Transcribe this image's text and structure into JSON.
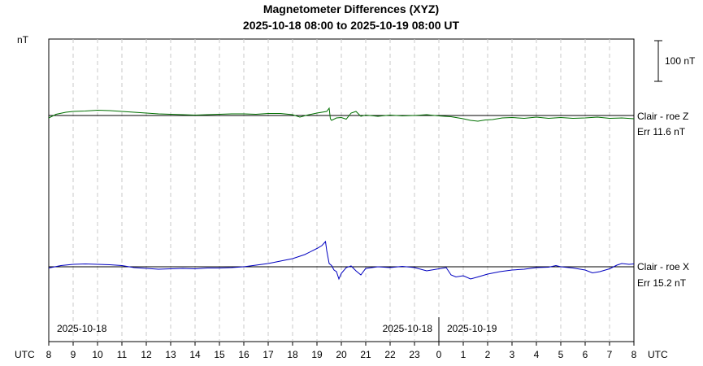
{
  "chart_data": {
    "type": "line",
    "title": "Magnetometer Differences (XYZ)",
    "subtitle": "2025-10-18 08:00 to 2025-10-19 08:00 UT",
    "y_unit_label": "nT",
    "scale_bar_label": "100 nT",
    "scale_bar_nT": 100,
    "x_axis_label_left": "UTC",
    "x_axis_label_right": "UTC",
    "x_ticks": [
      "8",
      "9",
      "10",
      "11",
      "12",
      "13",
      "14",
      "15",
      "16",
      "17",
      "18",
      "19",
      "20",
      "21",
      "22",
      "23",
      "0",
      "1",
      "2",
      "3",
      "4",
      "5",
      "6",
      "7",
      "8"
    ],
    "x_range_hours": [
      0,
      24
    ],
    "date_labels": [
      {
        "text": "2025-10-18",
        "hour": 0
      },
      {
        "text": "2025-10-18",
        "hour": 16
      },
      {
        "text": "2025-10-19",
        "hour": 16
      }
    ],
    "midnight_hour": 16,
    "grid": true,
    "series": [
      {
        "name": "Clair - roe Z",
        "error_label": "Err 11.6 nT",
        "color": "#007000",
        "points": [
          [
            0,
            -6
          ],
          [
            0.3,
            3
          ],
          [
            0.7,
            8
          ],
          [
            1.0,
            10
          ],
          [
            1.5,
            11
          ],
          [
            2.0,
            13
          ],
          [
            2.5,
            12
          ],
          [
            3.0,
            10
          ],
          [
            3.5,
            8
          ],
          [
            4.0,
            6
          ],
          [
            4.5,
            4
          ],
          [
            5.0,
            3
          ],
          [
            5.5,
            2
          ],
          [
            6.0,
            1
          ],
          [
            6.5,
            2
          ],
          [
            7.0,
            3
          ],
          [
            7.5,
            4
          ],
          [
            8.0,
            4
          ],
          [
            8.5,
            3
          ],
          [
            9.0,
            5
          ],
          [
            9.5,
            5
          ],
          [
            10.0,
            2
          ],
          [
            10.3,
            -4
          ],
          [
            10.6,
            1
          ],
          [
            11.0,
            6
          ],
          [
            11.4,
            10
          ],
          [
            11.5,
            18
          ],
          [
            11.55,
            -8
          ],
          [
            11.6,
            -12
          ],
          [
            11.8,
            -6
          ],
          [
            12.0,
            -5
          ],
          [
            12.2,
            -9
          ],
          [
            12.4,
            6
          ],
          [
            12.6,
            10
          ],
          [
            12.8,
            -2
          ],
          [
            13.0,
            1
          ],
          [
            13.5,
            -2
          ],
          [
            14.0,
            1
          ],
          [
            14.5,
            -1
          ],
          [
            15.0,
            0
          ],
          [
            15.5,
            2
          ],
          [
            16.0,
            -1
          ],
          [
            16.5,
            -3
          ],
          [
            17.0,
            -8
          ],
          [
            17.3,
            -12
          ],
          [
            17.6,
            -14
          ],
          [
            17.9,
            -11
          ],
          [
            18.2,
            -10
          ],
          [
            18.6,
            -6
          ],
          [
            19.0,
            -5
          ],
          [
            19.5,
            -7
          ],
          [
            20.0,
            -4
          ],
          [
            20.5,
            -7
          ],
          [
            21.0,
            -5
          ],
          [
            21.5,
            -7
          ],
          [
            22.0,
            -6
          ],
          [
            22.5,
            -4
          ],
          [
            23.0,
            -7
          ],
          [
            23.5,
            -6
          ],
          [
            24.0,
            -8
          ]
        ]
      },
      {
        "name": "Clair - roe X",
        "error_label": "Err 15.2 nT",
        "color": "#0000c0",
        "points": [
          [
            0,
            -3
          ],
          [
            0.5,
            3
          ],
          [
            1.0,
            6
          ],
          [
            1.5,
            7
          ],
          [
            2.0,
            6
          ],
          [
            2.5,
            5
          ],
          [
            3.0,
            3
          ],
          [
            3.5,
            -2
          ],
          [
            4.0,
            -4
          ],
          [
            4.5,
            -6
          ],
          [
            5.0,
            -5
          ],
          [
            5.5,
            -4
          ],
          [
            6.0,
            -5
          ],
          [
            6.5,
            -3
          ],
          [
            7.0,
            -3
          ],
          [
            7.5,
            -2
          ],
          [
            8.0,
            0
          ],
          [
            8.5,
            4
          ],
          [
            9.0,
            8
          ],
          [
            9.5,
            14
          ],
          [
            10.0,
            20
          ],
          [
            10.5,
            30
          ],
          [
            11.0,
            45
          ],
          [
            11.2,
            52
          ],
          [
            11.35,
            62
          ],
          [
            11.4,
            40
          ],
          [
            11.5,
            8
          ],
          [
            11.6,
            3
          ],
          [
            11.7,
            -8
          ],
          [
            11.8,
            -12
          ],
          [
            11.9,
            -30
          ],
          [
            12.0,
            -16
          ],
          [
            12.2,
            -2
          ],
          [
            12.4,
            2
          ],
          [
            12.6,
            -10
          ],
          [
            12.8,
            -20
          ],
          [
            13.0,
            -4
          ],
          [
            13.5,
            0
          ],
          [
            14.0,
            -2
          ],
          [
            14.5,
            1
          ],
          [
            15.0,
            -2
          ],
          [
            15.5,
            -10
          ],
          [
            16.0,
            -5
          ],
          [
            16.3,
            -2
          ],
          [
            16.5,
            -20
          ],
          [
            16.7,
            -25
          ],
          [
            17.0,
            -22
          ],
          [
            17.3,
            -30
          ],
          [
            17.6,
            -25
          ],
          [
            18.0,
            -18
          ],
          [
            18.5,
            -12
          ],
          [
            19.0,
            -8
          ],
          [
            19.5,
            -6
          ],
          [
            20.0,
            -2
          ],
          [
            20.5,
            -1
          ],
          [
            20.8,
            3
          ],
          [
            21.0,
            0
          ],
          [
            21.5,
            -3
          ],
          [
            22.0,
            -8
          ],
          [
            22.3,
            -15
          ],
          [
            22.6,
            -12
          ],
          [
            23.0,
            -5
          ],
          [
            23.3,
            4
          ],
          [
            23.5,
            8
          ],
          [
            23.8,
            6
          ],
          [
            24.0,
            7
          ]
        ]
      }
    ]
  }
}
